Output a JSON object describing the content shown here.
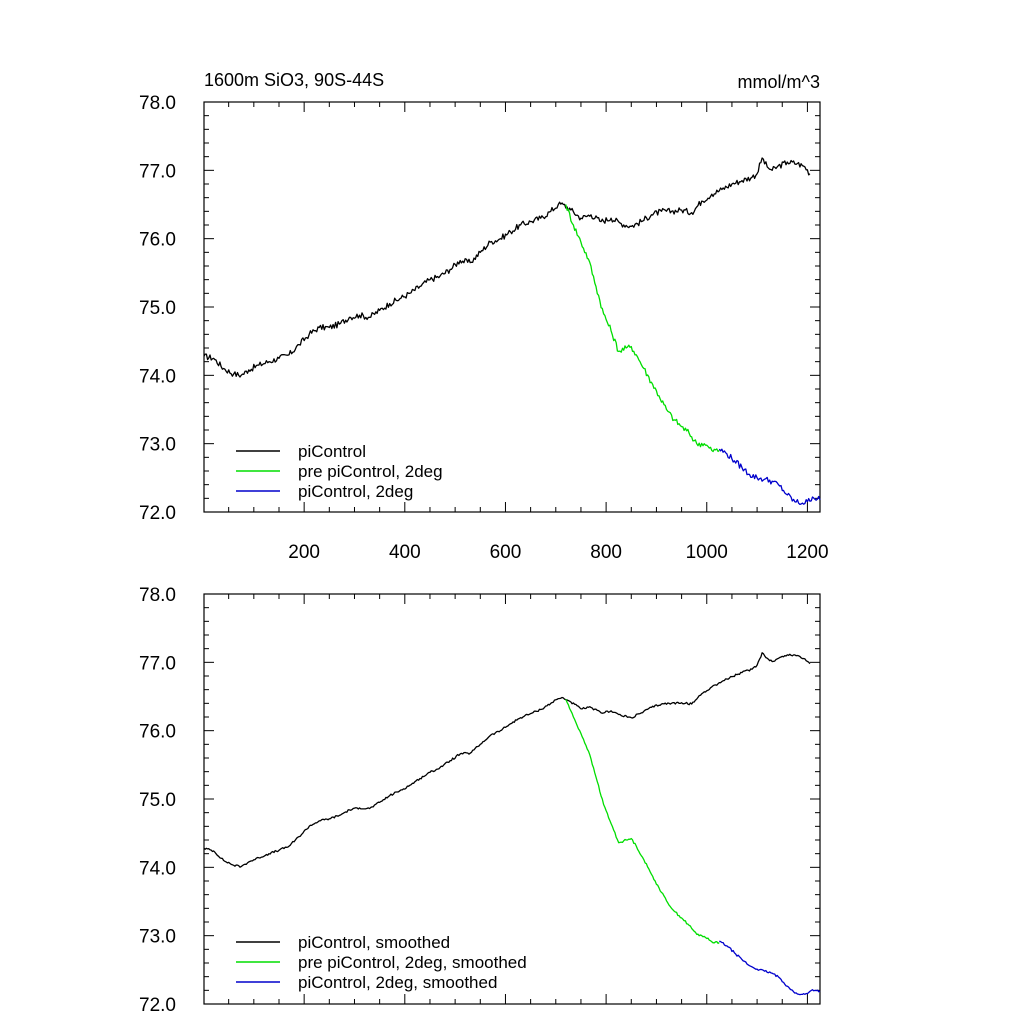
{
  "chart_data": [
    {
      "type": "line",
      "title": "1600m SiO3, 90S-44S",
      "units": "mmol/m^3",
      "xlim": [
        1,
        1225
      ],
      "ylim": [
        72.0,
        78.0
      ],
      "x_ticks": [
        200,
        400,
        600,
        800,
        1000,
        1200
      ],
      "y_ticks": [
        72.0,
        73.0,
        74.0,
        75.0,
        76.0,
        77.0,
        78.0
      ],
      "show_x_tick_labels": true,
      "grid": false,
      "legend_position": "bottom-left",
      "series": [
        {
          "name": "piControl",
          "color": "#000000",
          "x": [
            1,
            20,
            40,
            60,
            75,
            90,
            110,
            130,
            150,
            170,
            190,
            210,
            230,
            250,
            270,
            290,
            310,
            330,
            350,
            370,
            390,
            410,
            430,
            450,
            470,
            490,
            510,
            530,
            550,
            570,
            590,
            610,
            630,
            650,
            670,
            690,
            705,
            715,
            730,
            750,
            770,
            790,
            810,
            830,
            850,
            870,
            890,
            910,
            930,
            950,
            970,
            990,
            1010,
            1030,
            1050,
            1070,
            1090,
            1100,
            1110,
            1120,
            1130,
            1140,
            1160,
            1180,
            1195,
            1205
          ],
          "values": [
            74.28,
            74.25,
            74.1,
            74.02,
            74.0,
            74.08,
            74.15,
            74.2,
            74.25,
            74.3,
            74.45,
            74.6,
            74.7,
            74.7,
            74.75,
            74.85,
            74.88,
            74.85,
            74.95,
            75.05,
            75.12,
            75.2,
            75.3,
            75.4,
            75.45,
            75.55,
            75.68,
            75.65,
            75.8,
            75.95,
            76.0,
            76.1,
            76.2,
            76.25,
            76.3,
            76.4,
            76.5,
            76.5,
            76.42,
            76.3,
            76.35,
            76.25,
            76.3,
            76.22,
            76.18,
            76.25,
            76.35,
            76.4,
            76.4,
            76.42,
            76.38,
            76.55,
            76.65,
            76.72,
            76.8,
            76.85,
            76.9,
            76.95,
            77.18,
            77.05,
            77.0,
            77.05,
            77.12,
            77.1,
            77.05,
            76.95
          ]
        },
        {
          "name": "pre piControl, 2deg",
          "color": "#00dd00",
          "x": [
            720,
            735,
            750,
            765,
            780,
            795,
            810,
            825,
            840,
            850,
            860,
            875,
            890,
            905,
            920,
            935,
            950,
            965,
            980,
            995,
            1010,
            1025
          ],
          "values": [
            76.5,
            76.2,
            75.95,
            75.7,
            75.3,
            74.9,
            74.65,
            74.35,
            74.4,
            74.42,
            74.3,
            74.1,
            73.9,
            73.7,
            73.5,
            73.35,
            73.25,
            73.15,
            73.0,
            73.0,
            72.9,
            72.9
          ]
        },
        {
          "name": "piControl, 2deg",
          "color": "#0000cc",
          "x": [
            1025,
            1040,
            1055,
            1070,
            1085,
            1100,
            1115,
            1130,
            1145,
            1160,
            1175,
            1190,
            1200,
            1210,
            1225
          ],
          "values": [
            72.92,
            72.85,
            72.75,
            72.65,
            72.55,
            72.5,
            72.48,
            72.45,
            72.38,
            72.25,
            72.15,
            72.13,
            72.15,
            72.22,
            72.18
          ]
        }
      ]
    },
    {
      "type": "line",
      "title": "",
      "units": "",
      "xlim": [
        1,
        1225
      ],
      "ylim": [
        72.0,
        78.0
      ],
      "x_ticks": [
        200,
        400,
        600,
        800,
        1000,
        1200
      ],
      "y_ticks": [
        72.0,
        73.0,
        74.0,
        75.0,
        76.0,
        77.0,
        78.0
      ],
      "show_x_tick_labels": false,
      "grid": false,
      "legend_position": "bottom-left",
      "series": [
        {
          "name": "piControl, smoothed",
          "color": "#000000",
          "x": [
            1,
            20,
            40,
            60,
            75,
            90,
            110,
            130,
            150,
            170,
            190,
            210,
            230,
            250,
            270,
            290,
            310,
            330,
            350,
            370,
            390,
            410,
            430,
            450,
            470,
            490,
            510,
            530,
            550,
            570,
            590,
            610,
            630,
            650,
            670,
            690,
            705,
            715,
            730,
            750,
            770,
            790,
            810,
            830,
            850,
            870,
            890,
            910,
            930,
            950,
            970,
            990,
            1010,
            1030,
            1050,
            1070,
            1090,
            1100,
            1110,
            1120,
            1130,
            1140,
            1160,
            1180,
            1195,
            1205
          ],
          "values": [
            74.28,
            74.24,
            74.1,
            74.03,
            74.01,
            74.08,
            74.14,
            74.2,
            74.25,
            74.31,
            74.45,
            74.6,
            74.68,
            74.71,
            74.76,
            74.84,
            74.87,
            74.86,
            74.95,
            75.05,
            75.12,
            75.2,
            75.3,
            75.39,
            75.46,
            75.56,
            75.66,
            75.67,
            75.8,
            75.93,
            76.0,
            76.1,
            76.19,
            76.25,
            76.31,
            76.4,
            76.47,
            76.48,
            76.42,
            76.32,
            76.34,
            76.26,
            76.29,
            76.22,
            76.19,
            76.26,
            76.34,
            76.39,
            76.4,
            76.41,
            76.39,
            76.54,
            76.64,
            76.72,
            76.79,
            76.85,
            76.9,
            76.96,
            77.14,
            77.06,
            77.01,
            77.05,
            77.11,
            77.1,
            77.05,
            76.98
          ]
        },
        {
          "name": "pre piControl, 2deg, smoothed",
          "color": "#00dd00",
          "x": [
            720,
            735,
            750,
            765,
            780,
            795,
            810,
            825,
            840,
            850,
            860,
            875,
            890,
            905,
            920,
            935,
            950,
            965,
            980,
            995,
            1010,
            1025
          ],
          "values": [
            76.46,
            76.2,
            75.96,
            75.7,
            75.32,
            74.92,
            74.64,
            74.36,
            74.4,
            74.42,
            74.31,
            74.11,
            73.9,
            73.7,
            73.51,
            73.36,
            73.26,
            73.15,
            73.02,
            72.99,
            72.91,
            72.9
          ]
        },
        {
          "name": "piControl, 2deg, smoothed",
          "color": "#0000cc",
          "x": [
            1025,
            1040,
            1055,
            1070,
            1085,
            1100,
            1115,
            1130,
            1145,
            1160,
            1175,
            1190,
            1200,
            1210,
            1225
          ],
          "values": [
            72.92,
            72.85,
            72.75,
            72.65,
            72.56,
            72.51,
            72.48,
            72.45,
            72.38,
            72.26,
            72.16,
            72.14,
            72.15,
            72.21,
            72.19
          ]
        }
      ]
    }
  ]
}
